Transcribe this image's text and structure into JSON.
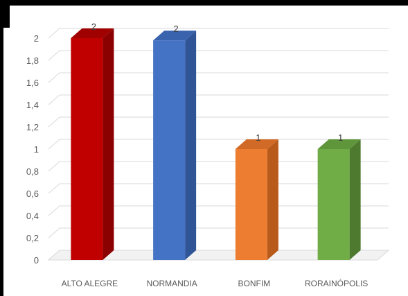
{
  "chart_data": {
    "type": "bar",
    "style": "3d-column",
    "categories": [
      "ALTO ALEGRE",
      "NORMANDIA",
      "BONFIM",
      "RORAINÓPOLIS"
    ],
    "values": [
      2,
      1.98,
      1,
      1
    ],
    "data_labels": [
      "2",
      "2",
      "1",
      "1"
    ],
    "colors": [
      "#c00000",
      "#4472c4",
      "#ed7d31",
      "#70ad47"
    ],
    "side_colors": [
      "#8b0000",
      "#2f5597",
      "#b85a1a",
      "#4e7a30"
    ],
    "top_colors": [
      "#a00000",
      "#3a63ad",
      "#d06a26",
      "#5f963b"
    ],
    "y_ticks": [
      "0",
      "0,2",
      "0,4",
      "0,6",
      "0,8",
      "1",
      "1,2",
      "1,4",
      "1,6",
      "1,8",
      "2"
    ],
    "ylim": [
      0,
      2
    ],
    "grid": true,
    "legend": "none",
    "title": "",
    "xlabel": "",
    "ylabel": ""
  }
}
